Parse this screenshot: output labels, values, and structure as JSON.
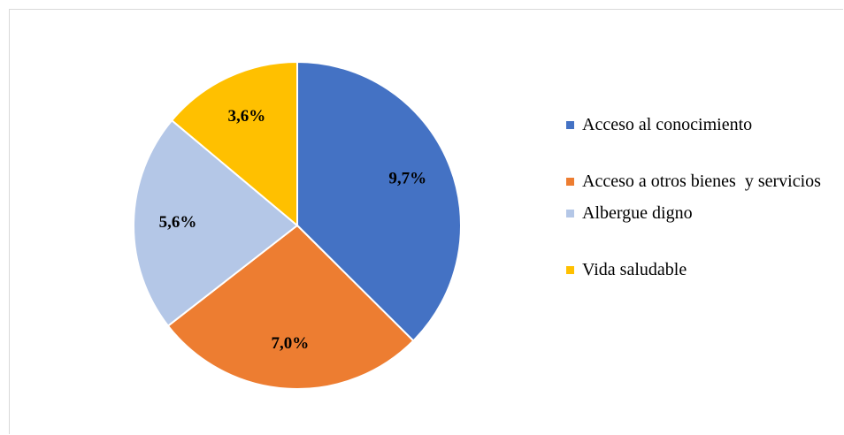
{
  "chart_data": {
    "type": "pie",
    "categories": [
      "Acceso al conocimiento",
      "Acceso a otros bienes  y servicios",
      "Albergue digno",
      "Vida saludable"
    ],
    "values": [
      9.7,
      7.0,
      5.6,
      3.6
    ],
    "value_labels": [
      "9,7%",
      "7,0%",
      "5,6%",
      "3,6%"
    ],
    "colors": [
      "#4472c4",
      "#ed7d31",
      "#b4c7e7",
      "#ffc000"
    ]
  }
}
